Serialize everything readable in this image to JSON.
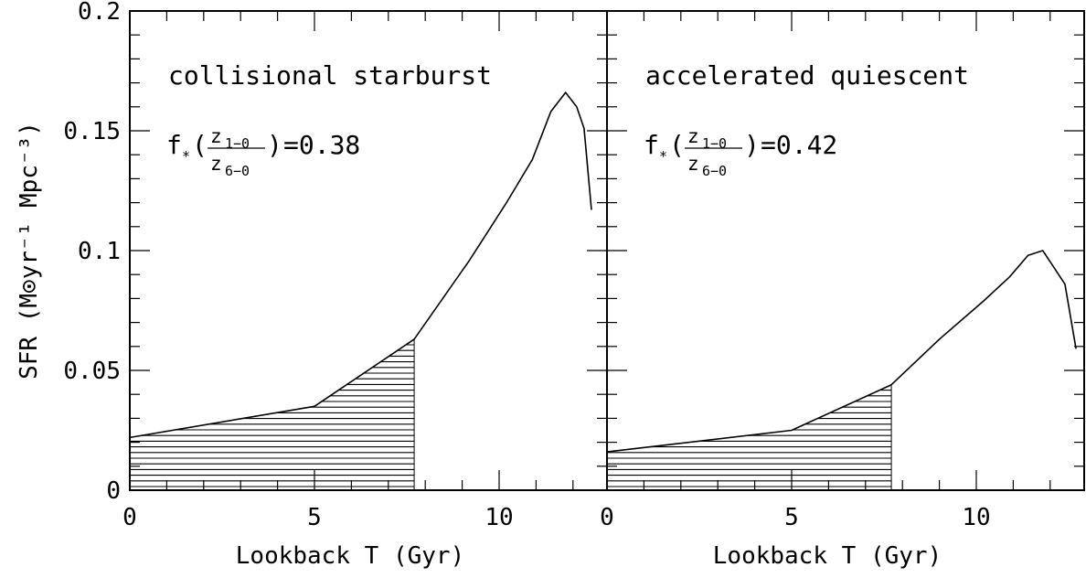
{
  "chart_data": {
    "type": "line",
    "ylabel": "SFR (M⊙yr⁻¹ Mpc⁻³)",
    "ylim": [
      0,
      0.2
    ],
    "yticks": [
      {
        "value": 0,
        "label": "0"
      },
      {
        "value": 0.05,
        "label": "0.05"
      },
      {
        "value": 0.1,
        "label": "0.1"
      },
      {
        "value": 0.15,
        "label": "0.15"
      },
      {
        "value": 0.2,
        "label": "0.2"
      }
    ],
    "panels": [
      {
        "annotation": "collisional starburst",
        "fraction_label": {
          "prefix": "f",
          "star": "*",
          "num": "z",
          "num_sub": "1−0",
          "den": "z",
          "den_sub": "6−0",
          "value": "=0.38"
        },
        "xlabel": "Lookback T (Gyr)",
        "xlim": [
          0,
          13
        ],
        "xticks": [
          {
            "value": 0,
            "label": "0"
          },
          {
            "value": 5,
            "label": "5"
          },
          {
            "value": 10,
            "label": "10"
          }
        ],
        "shade_until": 7.7,
        "series": [
          {
            "x": [
              0,
              5,
              7.7,
              9.2,
              10.2,
              10.9,
              11.4,
              11.8,
              12.1,
              12.3,
              12.5
            ],
            "y": [
              0.022,
              0.035,
              0.063,
              0.096,
              0.12,
              0.138,
              0.158,
              0.166,
              0.16,
              0.151,
              0.117
            ]
          }
        ]
      },
      {
        "annotation": "accelerated quiescent",
        "fraction_label": {
          "prefix": "f",
          "star": "*",
          "num": "z",
          "num_sub": "1−0",
          "den": "z",
          "den_sub": "6−0",
          "value": "=0.42"
        },
        "xlabel": "Lookback T (Gyr)",
        "xlim": [
          0,
          13
        ],
        "xticks": [
          {
            "value": 0,
            "label": "0"
          },
          {
            "value": 5,
            "label": "5"
          },
          {
            "value": 10,
            "label": "10"
          }
        ],
        "shade_until": 7.7,
        "series": [
          {
            "x": [
              0,
              5,
              7.7,
              9,
              10.2,
              10.9,
              11.4,
              11.8,
              12.1,
              12.4,
              12.7
            ],
            "y": [
              0.016,
              0.025,
              0.044,
              0.063,
              0.079,
              0.089,
              0.098,
              0.1,
              0.093,
              0.086,
              0.059
            ]
          }
        ]
      }
    ]
  }
}
